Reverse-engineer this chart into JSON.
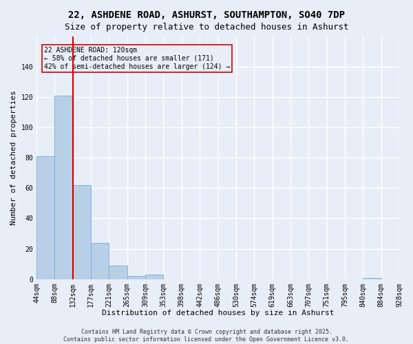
{
  "title": "22, ASHDENE ROAD, ASHURST, SOUTHAMPTON, SO40 7DP",
  "subtitle": "Size of property relative to detached houses in Ashurst",
  "xlabel": "Distribution of detached houses by size in Ashurst",
  "ylabel": "Number of detached properties",
  "bar_values": [
    81,
    121,
    62,
    24,
    9,
    2,
    3,
    0,
    0,
    0,
    0,
    0,
    0,
    0,
    0,
    0,
    0,
    0,
    1,
    0
  ],
  "categories": [
    "44sqm",
    "88sqm",
    "132sqm",
    "177sqm",
    "221sqm",
    "265sqm",
    "309sqm",
    "353sqm",
    "398sqm",
    "442sqm",
    "486sqm",
    "530sqm",
    "574sqm",
    "619sqm",
    "663sqm",
    "707sqm",
    "751sqm",
    "795sqm",
    "840sqm",
    "884sqm",
    "928sqm"
  ],
  "bar_color": "#b8cfe8",
  "bar_edge_color": "#7aadd4",
  "bg_color": "#e8eef8",
  "grid_color": "#ffffff",
  "annotation_box_color": "#cc0000",
  "annotation_text": "22 ASHDENE ROAD: 120sqm\n← 58% of detached houses are smaller (171)\n42% of semi-detached houses are larger (124) →",
  "vline_x_idx": 1,
  "vline_color": "#cc0000",
  "ylim": [
    0,
    160
  ],
  "yticks": [
    0,
    20,
    40,
    60,
    80,
    100,
    120,
    140
  ],
  "footer": "Contains HM Land Registry data © Crown copyright and database right 2025.\nContains public sector information licensed under the Open Government Licence v3.0.",
  "title_fontsize": 10,
  "subtitle_fontsize": 9,
  "tick_fontsize": 7,
  "ylabel_fontsize": 8,
  "xlabel_fontsize": 8
}
